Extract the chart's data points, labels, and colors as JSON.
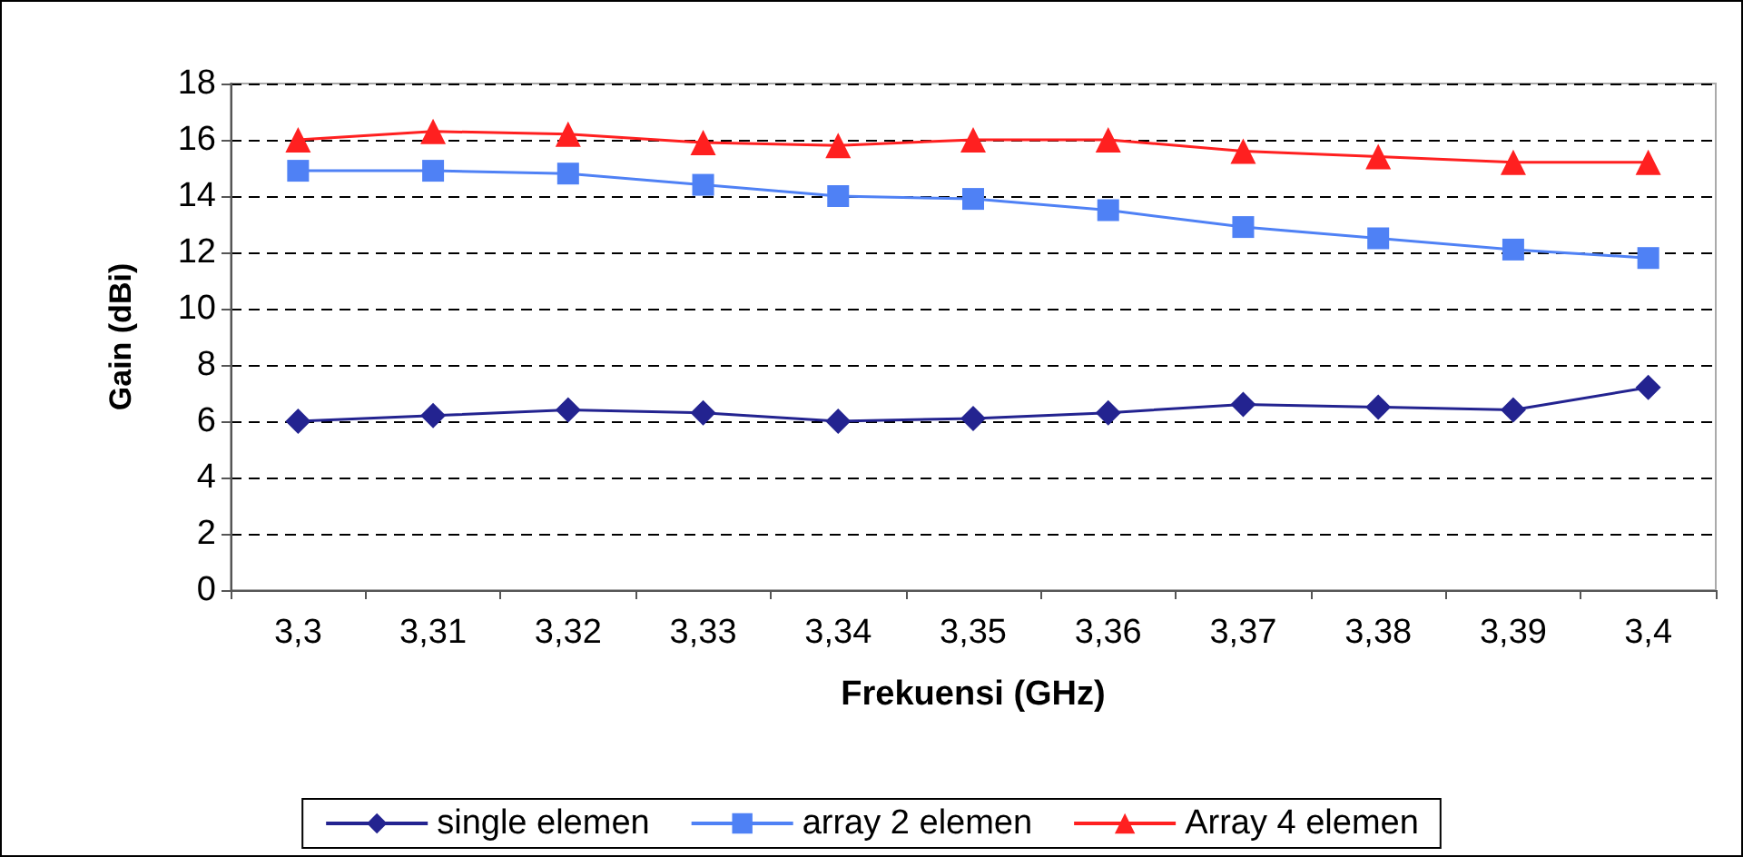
{
  "chart_data": {
    "type": "line",
    "xlabel": "Frekuensi (GHz)",
    "ylabel": "Gain (dBi)",
    "categories": [
      "3,3",
      "3,31",
      "3,32",
      "3,33",
      "3,34",
      "3,35",
      "3,36",
      "3,37",
      "3,38",
      "3,39",
      "3,4"
    ],
    "series": [
      {
        "name": "single elemen",
        "color": "#232390",
        "marker": "diamond",
        "values": [
          6.0,
          6.2,
          6.4,
          6.3,
          6.0,
          6.1,
          6.3,
          6.6,
          6.5,
          6.4,
          7.2
        ]
      },
      {
        "name": "array 2 elemen",
        "color": "#4f81f5",
        "marker": "square",
        "values": [
          14.9,
          14.9,
          14.8,
          14.4,
          14.0,
          13.9,
          13.5,
          12.9,
          12.5,
          12.1,
          11.8
        ]
      },
      {
        "name": "Array 4 elemen",
        "color": "#ff2020",
        "marker": "triangle",
        "values": [
          16.0,
          16.3,
          16.2,
          15.9,
          15.8,
          16.0,
          16.0,
          15.6,
          15.4,
          15.2,
          15.2
        ]
      }
    ],
    "ylim": [
      0,
      18
    ],
    "yticks": [
      0,
      2,
      4,
      6,
      8,
      10,
      12,
      14,
      16,
      18
    ],
    "grid": "y",
    "legend": "bottom",
    "line_style": "solid"
  }
}
